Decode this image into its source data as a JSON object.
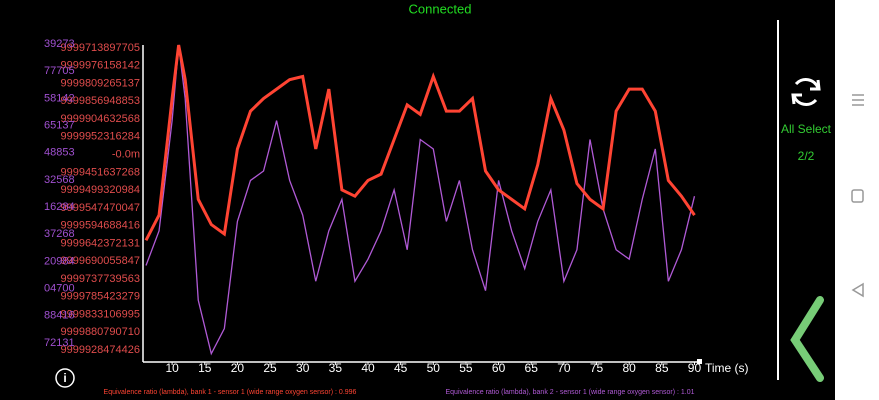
{
  "status": "Connected",
  "select_label": "All Select",
  "select_count": "2/2",
  "chart_data": {
    "type": "line",
    "x_label": "Time (s)",
    "x": [
      6,
      8,
      10,
      11,
      12,
      14,
      16,
      18,
      20,
      22,
      24,
      26,
      28,
      30,
      32,
      34,
      36,
      38,
      40,
      42,
      44,
      46,
      48,
      50,
      52,
      54,
      56,
      58,
      60,
      62,
      64,
      66,
      68,
      70,
      72,
      74,
      76,
      78,
      80,
      82,
      84,
      86,
      88,
      90
    ],
    "xlim": [
      6,
      91
    ],
    "xticks": [
      10,
      15,
      20,
      25,
      30,
      35,
      40,
      45,
      50,
      55,
      60,
      65,
      70,
      75,
      80,
      85,
      90
    ],
    "ylim": [
      0,
      100
    ],
    "series": [
      {
        "name": "Equivalence ratio (lambda), bank 1 - sensor 1 (wide range oxygen sensor) : 0.996",
        "color": "#ff4433",
        "values": [
          38,
          46,
          83,
          100,
          89,
          51,
          43,
          40,
          67,
          79,
          83,
          86,
          89,
          90,
          67,
          86,
          54,
          52,
          57,
          59,
          70,
          81,
          78,
          90,
          79,
          79,
          83,
          60,
          54,
          51,
          48,
          62,
          83,
          73,
          56,
          51,
          48,
          79,
          86,
          86,
          79,
          57,
          52,
          46
        ]
      },
      {
        "name": "Equivalence ratio (lambda), bank 2 - sensor 1 (wide range oxygen sensor) : 1.01",
        "color": "#b05ad6",
        "values": [
          30,
          41,
          76,
          100,
          83,
          19,
          2,
          10,
          44,
          57,
          60,
          76,
          57,
          46,
          25,
          41,
          51,
          25,
          32,
          41,
          54,
          35,
          70,
          67,
          44,
          57,
          35,
          22,
          57,
          41,
          29,
          44,
          54,
          25,
          35,
          70,
          48,
          35,
          32,
          51,
          67,
          25,
          35,
          52
        ]
      }
    ],
    "axis_labels_left": [
      "9999713897705",
      "9999976158142",
      "9999809265137",
      "9999856948853",
      "9999904632568",
      "9999952316284",
      "-0.0m",
      "9999451637268",
      "9999499320984",
      "9999547470047",
      "9999594688416",
      "9999642372131",
      "9999690055847",
      "9999737739563",
      "9999785423279",
      "9999833106995",
      "9999880790710",
      "9999928474426"
    ],
    "axis_labels_right": [
      "39273",
      "77705",
      "58142",
      "65137",
      "48853",
      "32568",
      "16284",
      "37268",
      "20984",
      "04700",
      "88416",
      "72131"
    ]
  }
}
